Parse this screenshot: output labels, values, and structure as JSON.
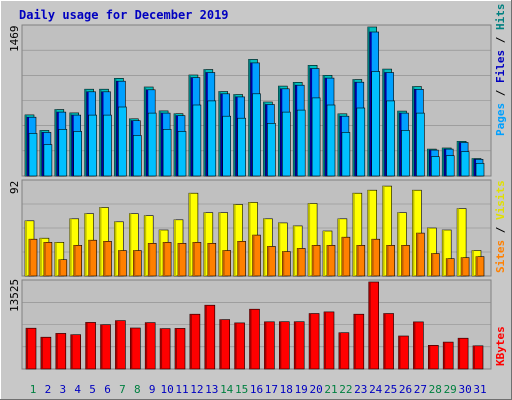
{
  "title": "Daily usage for December 2019",
  "colors": {
    "background": "#c8c8c8",
    "plot_bg": "#c0c0c0",
    "grid": "#8a8a8a",
    "title": "#0000c0",
    "day_normal": "#0000c0",
    "day_weekend": "#008040",
    "hits": "#00c0c0",
    "hits_dark": "#008080",
    "files": "#00a0ff",
    "files_dark": "#0000a0",
    "pages": "#00c0ff",
    "visits": "#ffff00",
    "visits_dark": "#c0c000",
    "sites": "#ff8000",
    "sites_dark": "#c06000",
    "kbytes": "#ff0000",
    "kbytes_dark": "#a00000"
  },
  "chart_data": [
    {
      "type": "bar",
      "panel": "hits-files-pages",
      "ymax_label": "1469",
      "ymax": 1469,
      "grid": true,
      "categories": [
        "1",
        "2",
        "3",
        "4",
        "5",
        "6",
        "7",
        "8",
        "9",
        "10",
        "11",
        "12",
        "13",
        "14",
        "15",
        "16",
        "17",
        "18",
        "19",
        "20",
        "21",
        "22",
        "23",
        "24",
        "25",
        "26",
        "27",
        "28",
        "29",
        "30",
        "31"
      ],
      "legend": [
        "Pages",
        "Files",
        "Hits"
      ],
      "series": [
        {
          "name": "Hits",
          "values": [
            602,
            450,
            656,
            622,
            856,
            856,
            963,
            564,
            877,
            642,
            614,
            996,
            1050,
            833,
            804,
            1150,
            730,
            886,
            924,
            1091,
            993,
            613,
            951,
            1469,
            1054,
            640,
            882,
            265,
            276,
            342,
            173
          ]
        },
        {
          "name": "Files",
          "values": [
            580,
            430,
            630,
            600,
            830,
            830,
            935,
            545,
            850,
            620,
            595,
            970,
            1020,
            810,
            780,
            1115,
            705,
            860,
            895,
            1060,
            965,
            590,
            925,
            1420,
            1020,
            620,
            855,
            255,
            265,
            330,
            165
          ]
        },
        {
          "name": "Pages",
          "values": [
            420,
            310,
            460,
            440,
            600,
            600,
            680,
            400,
            620,
            460,
            440,
            700,
            740,
            590,
            570,
            810,
            520,
            630,
            650,
            770,
            700,
            430,
            670,
            1030,
            740,
            450,
            620,
            190,
            200,
            240,
            125
          ]
        }
      ]
    },
    {
      "type": "bar",
      "panel": "visits-sites",
      "ymax_label": "92",
      "ymax": 92,
      "grid": true,
      "categories": [
        "1",
        "2",
        "3",
        "4",
        "5",
        "6",
        "7",
        "8",
        "9",
        "10",
        "11",
        "12",
        "13",
        "14",
        "15",
        "16",
        "17",
        "18",
        "19",
        "20",
        "21",
        "22",
        "23",
        "24",
        "25",
        "26",
        "27",
        "28",
        "29",
        "30",
        "31"
      ],
      "legend": [
        "Sites",
        "Visits"
      ],
      "series": [
        {
          "name": "Visits",
          "values": [
            54,
            37,
            33,
            56,
            61,
            67,
            53,
            61,
            59,
            45,
            55,
            81,
            62,
            62,
            70,
            72,
            56,
            52,
            49,
            71,
            44,
            56,
            81,
            84,
            88,
            62,
            84,
            47,
            45,
            66,
            25
          ]
        },
        {
          "name": "Sites",
          "values": [
            36,
            33,
            16,
            30,
            35,
            34,
            25,
            25,
            32,
            33,
            32,
            33,
            32,
            25,
            34,
            40,
            29,
            24,
            27,
            30,
            30,
            38,
            30,
            36,
            30,
            30,
            42,
            22,
            17,
            18,
            19
          ]
        }
      ]
    },
    {
      "type": "bar",
      "panel": "kbytes",
      "ymax_label": "13525",
      "ymax": 13525,
      "grid": true,
      "categories": [
        "1",
        "2",
        "3",
        "4",
        "5",
        "6",
        "7",
        "8",
        "9",
        "10",
        "11",
        "12",
        "13",
        "14",
        "15",
        "16",
        "17",
        "18",
        "19",
        "20",
        "21",
        "22",
        "23",
        "24",
        "25",
        "26",
        "27",
        "28",
        "29",
        "30",
        "31"
      ],
      "legend": [
        "KBytes"
      ],
      "series": [
        {
          "name": "KBytes",
          "values": [
            6350,
            4950,
            5540,
            5330,
            7250,
            6890,
            7530,
            6380,
            7220,
            6280,
            6310,
            8520,
            9920,
            7680,
            7170,
            9290,
            7340,
            7350,
            7350,
            8630,
            8870,
            5650,
            8520,
            13525,
            8630,
            5130,
            7320,
            3690,
            4180,
            4790,
            3600
          ]
        }
      ]
    }
  ]
}
